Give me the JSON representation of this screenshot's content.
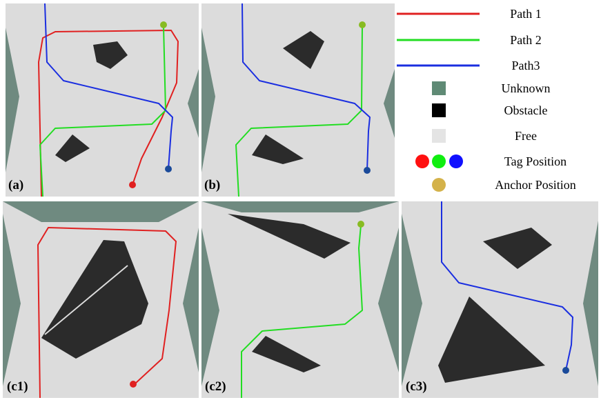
{
  "panels": [
    "(a)",
    "(b)",
    "(c1)",
    "(c2)",
    "(c3)"
  ],
  "legend": [
    "Path 1",
    "Path 2",
    "Path3",
    "Unknown",
    "Obstacle",
    "Free",
    "Tag Position",
    "Anchor Position"
  ]
}
